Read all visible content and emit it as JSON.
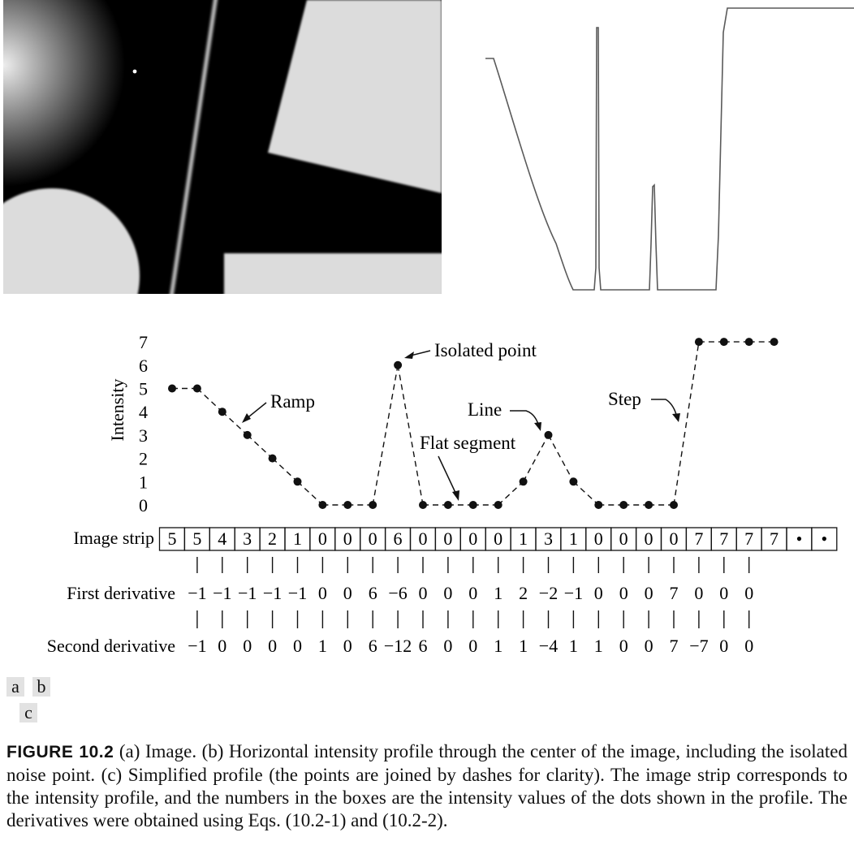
{
  "panel_labels": {
    "a": "a",
    "b": "b",
    "c": "c"
  },
  "caption": {
    "figure_number": "FIGURE 10.2",
    "text": " (a) Image. (b) Horizontal intensity profile through the center of the image, including the isolated noise point. (c) Simplified profile (the points are joined by dashes for clarity). The image strip corresponds to the intensity profile, and the numbers in the boxes are the intensity values of the dots shown in the profile. The derivatives were obtained using Eqs. (10.2-1) and (10.2-2)."
  },
  "chart_data": {
    "type": "line",
    "ylabel": "Intensity",
    "yticks": [
      "0",
      "1",
      "2",
      "3",
      "4",
      "5",
      "6",
      "7"
    ],
    "ylim": [
      0,
      7
    ],
    "x": [
      1,
      2,
      3,
      4,
      5,
      6,
      7,
      8,
      9,
      10,
      11,
      12,
      13,
      14,
      15,
      16,
      17,
      18,
      19,
      20,
      21,
      22,
      23,
      24,
      25
    ],
    "values": [
      5,
      5,
      4,
      3,
      2,
      1,
      0,
      0,
      0,
      6,
      0,
      0,
      0,
      0,
      1,
      3,
      1,
      0,
      0,
      0,
      0,
      7,
      7,
      7,
      7
    ],
    "annotations": [
      {
        "text": "Isolated point",
        "x": 10,
        "y": 6
      },
      {
        "text": "Ramp",
        "x": 4,
        "y": 3.6
      },
      {
        "text": "Line",
        "x": 16,
        "y": 3
      },
      {
        "text": "Flat segment",
        "x": 12,
        "y": 0
      },
      {
        "text": "Step",
        "x": 21,
        "y": 3.6
      }
    ],
    "strip_label": "Image strip",
    "strip_values": [
      "5",
      "5",
      "4",
      "3",
      "2",
      "1",
      "0",
      "0",
      "0",
      "6",
      "0",
      "0",
      "0",
      "0",
      "1",
      "3",
      "1",
      "0",
      "0",
      "0",
      "0",
      "7",
      "7",
      "7",
      "7",
      "•",
      "•"
    ],
    "first_derivative_label": "First derivative",
    "first_derivative": [
      "−1",
      "−1",
      "−1",
      "−1",
      "−1",
      "0",
      "0",
      "6",
      "−6",
      "0",
      "0",
      "0",
      "1",
      "2",
      "−2",
      "−1",
      "0",
      "0",
      "0",
      "7",
      "0",
      "0",
      "0"
    ],
    "second_derivative_label": "Second derivative",
    "second_derivative": [
      "−1",
      "0",
      "0",
      "0",
      "0",
      "1",
      "0",
      "6",
      "−12",
      "6",
      "0",
      "0",
      "1",
      "1",
      "−4",
      "1",
      "1",
      "0",
      "0",
      "7",
      "−7",
      "0",
      "0"
    ]
  }
}
